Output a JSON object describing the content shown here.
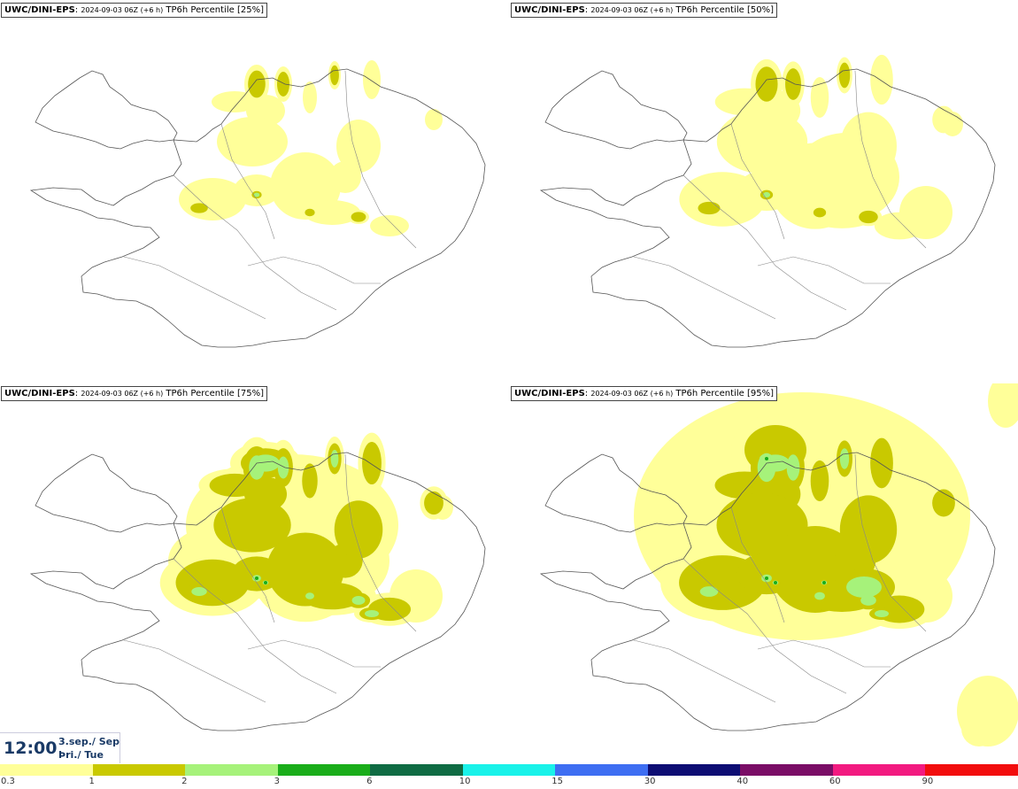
{
  "panels": [
    {
      "model": "UWC/DINI-EPS",
      "sep": ":",
      "date": "2024-09-03 06Z (+6 h)",
      "field": "TP6h Percentile [25%]",
      "intensity": 1
    },
    {
      "model": "UWC/DINI-EPS",
      "sep": ":",
      "date": "2024-09-03 06Z (+6 h)",
      "field": "TP6h Percentile [50%]",
      "intensity": 2
    },
    {
      "model": "UWC/DINI-EPS",
      "sep": ":",
      "date": "2024-09-03 06Z (+6 h)",
      "field": "TP6h Percentile [75%]",
      "intensity": 3
    },
    {
      "model": "UWC/DINI-EPS",
      "sep": ":",
      "date": "2024-09-03 06Z (+6 h)",
      "field": "TP6h Percentile [95%]",
      "intensity": 4
    }
  ],
  "valid_time": {
    "time": "12:00",
    "date_is": "3.sep./ Sep",
    "day_is": "Þri./ Tue"
  },
  "legend": {
    "bins": [
      {
        "label": "0.3",
        "color": "#ffff99"
      },
      {
        "label": "1",
        "color": "#c9c900"
      },
      {
        "label": "2",
        "color": "#a6f27a"
      },
      {
        "label": "3",
        "color": "#1aad1a"
      },
      {
        "label": "6",
        "color": "#0f6b43"
      },
      {
        "label": "10",
        "color": "#19f2e9"
      },
      {
        "label": "15",
        "color": "#3e6ef2"
      },
      {
        "label": "30",
        "color": "#0d0d73"
      },
      {
        "label": "40",
        "color": "#7a0d66"
      },
      {
        "label": "60",
        "color": "#f21a80"
      },
      {
        "label": "90",
        "color": "#f20d0d"
      }
    ]
  }
}
